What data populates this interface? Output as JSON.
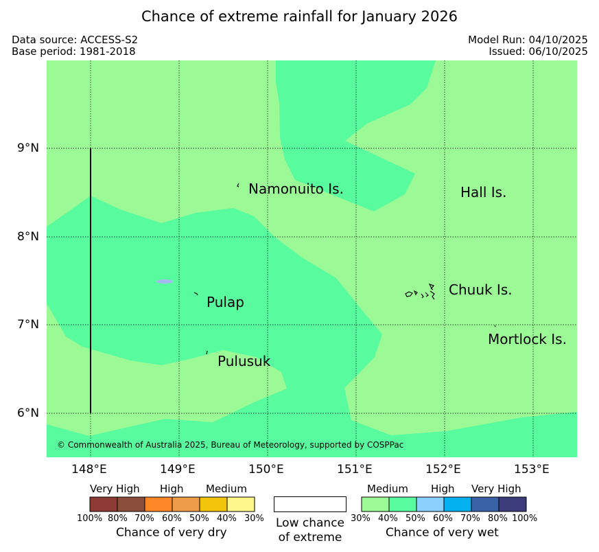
{
  "title": "Chance of extreme rainfall for January 2026",
  "header": {
    "data_source": "Data source: ACCESS-S2",
    "base_period": "Base period: 1981-2018",
    "model_run": "Model Run: 04/10/2025",
    "issued": "Issued: 06/10/2025"
  },
  "map": {
    "lon_range": [
      147.5,
      153.5
    ],
    "lat_range": [
      5.5,
      10.0
    ],
    "grid": true,
    "lon_ticks": [
      "148°E",
      "149°E",
      "150°E",
      "151°E",
      "152°E",
      "153°E"
    ],
    "lat_ticks": [
      "9°N",
      "8°N",
      "7°N",
      "6°N"
    ],
    "places": [
      {
        "name": "Namonuito Is."
      },
      {
        "name": "Hall Is."
      },
      {
        "name": "Pulap"
      },
      {
        "name": "Chuuk Is."
      },
      {
        "name": "Mortlock Is."
      },
      {
        "name": "Pulusuk"
      }
    ],
    "colors": {
      "medium_wet": "#9cfa96",
      "high_wet_band": "#59fb9f",
      "lake": "#a6b8f0"
    },
    "copyright": "© Commonwealth of Australia 2025, Bureau of Meteorology, supported by COSPPac"
  },
  "legend": {
    "dry": {
      "categories": [
        "Very High",
        "High",
        "Medium"
      ],
      "colors": [
        "#8c3a33",
        "#8b4e3c",
        "#ff8727",
        "#ee9c49",
        "#f2c40a",
        "#fff68c"
      ],
      "ticks": [
        "100%",
        "80%",
        "70%",
        "60%",
        "50%",
        "40%",
        "30%"
      ],
      "caption": "Chance of very dry"
    },
    "neutral": {
      "color": "#ffffff",
      "caption_line1": "Low chance",
      "caption_line2": "of extreme"
    },
    "wet": {
      "categories": [
        "Medium",
        "High",
        "Very High"
      ],
      "colors": [
        "#9cfa96",
        "#59fb9f",
        "#8ad0fc",
        "#03b0f0",
        "#3962a6",
        "#3d3c7a"
      ],
      "ticks": [
        "30%",
        "40%",
        "50%",
        "60%",
        "70%",
        "80%",
        "100%"
      ],
      "caption": "Chance of very wet"
    }
  }
}
